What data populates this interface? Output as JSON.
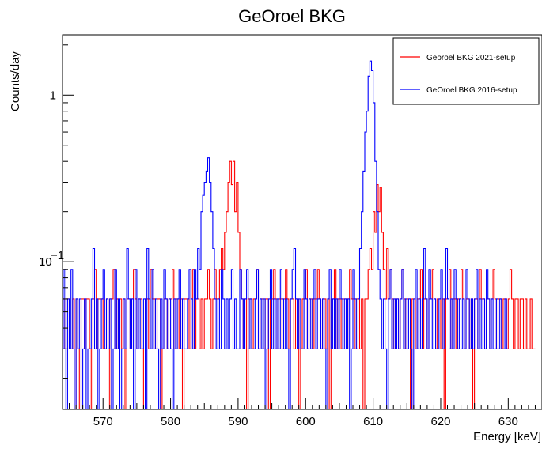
{
  "chart_data": {
    "type": "line",
    "title": "GeOroel BKG",
    "xlabel": "Energy [keV]",
    "ylabel": "Counts/day",
    "xlim": [
      564,
      635
    ],
    "ylim": [
      0.013,
      2.3
    ],
    "yscale": "log",
    "xticks": [
      570,
      580,
      590,
      600,
      610,
      620,
      630
    ],
    "yticks": [
      {
        "value": 0.1,
        "base": "10",
        "exp": "−1"
      },
      {
        "value": 1,
        "label": "1"
      }
    ],
    "legend": {
      "position": "top-right",
      "entries": [
        {
          "label": "Georoel BKG 2021-setup",
          "color": "#ff0000"
        },
        {
          "label": "GeOroel BKG 2016-setup",
          "color": "#0000ff"
        }
      ]
    },
    "series": [
      {
        "name": "Georoel BKG 2021-setup",
        "color": "#ff0000",
        "bin_width": 0.25,
        "x_start": 564,
        "peaks": [
          {
            "x": 582.5,
            "y": 0.4
          },
          {
            "x": 609.2,
            "y": 0.29
          },
          {
            "x": 610.0,
            "y": 0.28
          }
        ],
        "values": [
          0.06,
          0.03,
          0.06,
          0.06,
          0.03,
          0.03,
          0.06,
          0.012,
          0.06,
          0.03,
          0.012,
          0.06,
          0.06,
          0.03,
          0.06,
          0.06,
          0.03,
          0.012,
          0.06,
          0.09,
          0.03,
          0.06,
          0.06,
          0.06,
          0.03,
          0.03,
          0.06,
          0.012,
          0.06,
          0.06,
          0.09,
          0.03,
          0.06,
          0.03,
          0.06,
          0.03,
          0.06,
          0.012,
          0.06,
          0.06,
          0.03,
          0.06,
          0.09,
          0.06,
          0.03,
          0.06,
          0.06,
          0.03,
          0.012,
          0.06,
          0.06,
          0.03,
          0.09,
          0.06,
          0.06,
          0.03,
          0.06,
          0.06,
          0.012,
          0.03,
          0.06,
          0.06,
          0.03,
          0.06,
          0.06,
          0.09,
          0.03,
          0.06,
          0.06,
          0.03,
          0.06,
          0.012,
          0.06,
          0.06,
          0.06,
          0.03,
          0.06,
          0.09,
          0.03,
          0.06,
          0.06,
          0.03,
          0.06,
          0.03,
          0.06,
          0.06,
          0.09,
          0.06,
          0.03,
          0.06,
          0.09,
          0.06,
          0.06,
          0.09,
          0.12,
          0.09,
          0.15,
          0.2,
          0.3,
          0.4,
          0.29,
          0.4,
          0.2,
          0.3,
          0.15,
          0.09,
          0.06,
          0.03,
          0.06,
          0.012,
          0.06,
          0.06,
          0.03,
          0.06,
          0.06,
          0.09,
          0.03,
          0.06,
          0.06,
          0.03,
          0.06,
          0.06,
          0.012,
          0.06,
          0.06,
          0.09,
          0.06,
          0.03,
          0.06,
          0.06,
          0.03,
          0.06,
          0.09,
          0.06,
          0.03,
          0.06,
          0.06,
          0.03,
          0.06,
          0.06,
          0.012,
          0.03,
          0.06,
          0.06,
          0.09,
          0.03,
          0.06,
          0.06,
          0.03,
          0.06,
          0.06,
          0.09,
          0.06,
          0.03,
          0.06,
          0.06,
          0.03,
          0.06,
          0.012,
          0.06,
          0.06,
          0.09,
          0.03,
          0.06,
          0.06,
          0.03,
          0.06,
          0.06,
          0.03,
          0.06,
          0.09,
          0.06,
          0.06,
          0.03,
          0.06,
          0.06,
          0.03,
          0.06,
          0.012,
          0.06,
          0.06,
          0.09,
          0.12,
          0.09,
          0.2,
          0.15,
          0.29,
          0.2,
          0.28,
          0.15,
          0.09,
          0.06,
          0.12,
          0.06,
          0.09,
          0.06,
          0.03,
          0.06,
          0.06,
          0.03,
          0.06,
          0.09,
          0.06,
          0.03,
          0.06,
          0.06,
          0.012,
          0.06,
          0.06,
          0.03,
          0.06,
          0.06,
          0.09,
          0.03,
          0.06,
          0.06,
          0.03,
          0.06,
          0.06,
          0.09,
          0.06,
          0.03,
          0.06,
          0.06,
          0.03,
          0.06,
          0.012,
          0.06,
          0.06,
          0.09,
          0.03,
          0.06,
          0.06,
          0.03,
          0.06,
          0.06,
          0.09,
          0.06,
          0.03,
          0.06,
          0.06,
          0.03,
          0.06,
          0.012,
          0.06,
          0.06,
          0.03,
          0.09,
          0.06,
          0.06,
          0.03,
          0.06,
          0.06,
          0.03,
          0.06,
          0.09,
          0.06,
          0.03,
          0.06,
          0.06,
          0.03,
          0.06,
          0.06,
          0.03,
          0.06,
          0.09,
          0.06,
          0.03,
          0.06,
          0.06,
          0.03,
          0.06,
          0.06,
          0.03,
          0.06,
          0.03,
          0.03,
          0.06,
          0.03,
          0.03
        ]
      },
      {
        "name": "GeOroel BKG 2016-setup",
        "color": "#0000ff",
        "bin_width": 0.25,
        "x_start": 564,
        "peaks": [
          {
            "x": 583.0,
            "y": 0.42
          },
          {
            "x": 609.5,
            "y": 1.6
          }
        ],
        "values": [
          0.03,
          0.09,
          0.012,
          0.06,
          0.03,
          0.09,
          0.03,
          0.012,
          0.06,
          0.03,
          0.06,
          0.012,
          0.03,
          0.06,
          0.012,
          0.03,
          0.03,
          0.06,
          0.12,
          0.03,
          0.06,
          0.012,
          0.03,
          0.06,
          0.09,
          0.03,
          0.06,
          0.03,
          0.06,
          0.012,
          0.03,
          0.09,
          0.03,
          0.06,
          0.012,
          0.03,
          0.06,
          0.03,
          0.12,
          0.06,
          0.03,
          0.06,
          0.012,
          0.09,
          0.03,
          0.06,
          0.03,
          0.03,
          0.06,
          0.012,
          0.12,
          0.06,
          0.03,
          0.09,
          0.03,
          0.06,
          0.03,
          0.012,
          0.06,
          0.03,
          0.09,
          0.06,
          0.03,
          0.06,
          0.03,
          0.012,
          0.06,
          0.03,
          0.06,
          0.09,
          0.03,
          0.06,
          0.03,
          0.03,
          0.06,
          0.09,
          0.06,
          0.03,
          0.09,
          0.06,
          0.12,
          0.09,
          0.2,
          0.25,
          0.3,
          0.35,
          0.42,
          0.3,
          0.2,
          0.12,
          0.06,
          0.03,
          0.06,
          0.03,
          0.09,
          0.06,
          0.03,
          0.06,
          0.03,
          0.06,
          0.09,
          0.03,
          0.06,
          0.03,
          0.03,
          0.09,
          0.06,
          0.03,
          0.06,
          0.09,
          0.03,
          0.06,
          0.03,
          0.03,
          0.06,
          0.09,
          0.03,
          0.06,
          0.03,
          0.06,
          0.012,
          0.03,
          0.06,
          0.09,
          0.03,
          0.06,
          0.03,
          0.06,
          0.03,
          0.09,
          0.06,
          0.03,
          0.06,
          0.03,
          0.012,
          0.06,
          0.09,
          0.12,
          0.06,
          0.03,
          0.06,
          0.03,
          0.03,
          0.09,
          0.06,
          0.03,
          0.06,
          0.03,
          0.06,
          0.09,
          0.03,
          0.06,
          0.06,
          0.03,
          0.06,
          0.03,
          0.012,
          0.06,
          0.09,
          0.03,
          0.06,
          0.03,
          0.06,
          0.03,
          0.09,
          0.06,
          0.03,
          0.06,
          0.03,
          0.06,
          0.012,
          0.03,
          0.09,
          0.06,
          0.03,
          0.06,
          0.12,
          0.2,
          0.35,
          0.6,
          0.8,
          1.3,
          1.6,
          1.4,
          0.9,
          0.4,
          0.2,
          0.09,
          0.06,
          0.03,
          0.06,
          0.03,
          0.012,
          0.06,
          0.09,
          0.03,
          0.06,
          0.03,
          0.06,
          0.03,
          0.06,
          0.09,
          0.03,
          0.06,
          0.03,
          0.06,
          0.03,
          0.012,
          0.06,
          0.09,
          0.03,
          0.06,
          0.03,
          0.06,
          0.12,
          0.06,
          0.03,
          0.09,
          0.06,
          0.03,
          0.06,
          0.03,
          0.03,
          0.06,
          0.09,
          0.03,
          0.06,
          0.12,
          0.06,
          0.03,
          0.06,
          0.03,
          0.09,
          0.06,
          0.03,
          0.06,
          0.03,
          0.06,
          0.03,
          0.09,
          0.06,
          0.03,
          0.06,
          0.03,
          0.06,
          0.09,
          0.03,
          0.06,
          0.03,
          0.06,
          0.03,
          0.09,
          0.06,
          0.03,
          0.06,
          0.03,
          0.03,
          0.06,
          0.03,
          0.06,
          0.03,
          0.03,
          0.06,
          0.03
        ]
      }
    ]
  }
}
